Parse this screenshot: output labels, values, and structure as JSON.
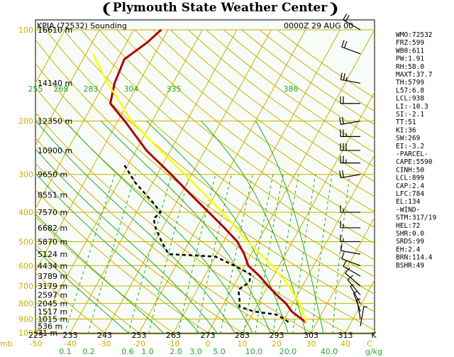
{
  "header": {
    "title": "Plymouth State Weather Center",
    "station_label": "KPIA (72532) Sounding",
    "time_label": "0000Z 29 AUG  00"
  },
  "indices": [
    "WMO:72532",
    "FRZ:599",
    "WB0:611",
    "PW:1.91",
    "RH:58.0",
    "MAXT:37.7",
    "TH:5799",
    "L57:6.8",
    "LCL:938",
    "LI:-10.3",
    "SI:-2.1",
    "TT:51",
    "KI:36",
    "SW:269",
    "EI:-3.2",
    "-PARCEL-",
    "CAPE:5590",
    "CINH:50",
    "LCL:899",
    "CAP:2.4",
    "LFC:784",
    "EL:134",
    "-WIND-",
    "STM:317/19",
    "HEL:72",
    "SHR:0.0",
    "SRDS:99",
    "EH:2.4",
    "BRN:114.4",
    "BSHR:49"
  ],
  "colors": {
    "isobar": "#c8b000",
    "isotherm": "#c8b000",
    "dry_adiabat": "#c8b000",
    "moist_adiabat": "#22aa22",
    "mixing_ratio": "#22aa22",
    "temperature": "#aa0000",
    "dewpoint": "#000000",
    "parcel": "#ffff00",
    "background": "#f8fcf8"
  },
  "chart_data": {
    "type": "line",
    "title": "",
    "xlabel": "",
    "ylabel": "mb",
    "pressure_levels": [
      100,
      200,
      300,
      400,
      500,
      600,
      700,
      800,
      900,
      1000
    ],
    "height_labels": [
      {
        "p": 100,
        "label": "16610 m"
      },
      {
        "p": 150,
        "label": "14140 m"
      },
      {
        "p": 200,
        "label": "12350 m"
      },
      {
        "p": 250,
        "label": "10900 m"
      },
      {
        "p": 300,
        "label": "9650 m"
      },
      {
        "p": 350,
        "label": "8551 m"
      },
      {
        "p": 400,
        "label": "7570 m"
      },
      {
        "p": 450,
        "label": "6682 m"
      },
      {
        "p": 500,
        "label": "5870 m"
      },
      {
        "p": 550,
        "label": "5124 m"
      },
      {
        "p": 600,
        "label": "4434 m"
      },
      {
        "p": 650,
        "label": "3789 m"
      },
      {
        "p": 700,
        "label": "3179 m"
      },
      {
        "p": 750,
        "label": "2597 m"
      },
      {
        "p": 800,
        "label": "2045 m"
      },
      {
        "p": 850,
        "label": "1517 m"
      },
      {
        "p": 900,
        "label": "1015 m"
      },
      {
        "p": 950,
        "label": "536 m"
      },
      {
        "p": 1000,
        "label": "71 m"
      }
    ],
    "temperature_ticks": [
      "-50",
      "-40",
      "-30",
      "-20",
      "-10",
      "0",
      "10",
      "20",
      "30",
      "40",
      "C"
    ],
    "kelvin_ticks": [
      "223",
      "233",
      "243",
      "253",
      "263",
      "273",
      "283",
      "293",
      "303",
      "313",
      "K"
    ],
    "mixing_ratio_ticks": [
      "0.1",
      "0.2",
      "0.6",
      "1.0",
      "2.0",
      "3.0",
      "5.0",
      "10.0",
      "20.0",
      "40.0",
      "g/kg"
    ],
    "theta_e_labels": [
      "255",
      "268",
      "283",
      "304",
      "335",
      "386"
    ],
    "series": [
      {
        "key": "temperature",
        "points": [
          [
            100,
            -62
          ],
          [
            110,
            -64
          ],
          [
            125,
            -68
          ],
          [
            150,
            -67
          ],
          [
            175,
            -65
          ],
          [
            200,
            -58
          ],
          [
            250,
            -47
          ],
          [
            300,
            -36
          ],
          [
            350,
            -27
          ],
          [
            400,
            -19
          ],
          [
            450,
            -12
          ],
          [
            500,
            -6
          ],
          [
            550,
            -2
          ],
          [
            600,
            1
          ],
          [
            650,
            6
          ],
          [
            700,
            10
          ],
          [
            750,
            14
          ],
          [
            800,
            18
          ],
          [
            850,
            21
          ],
          [
            900,
            25
          ],
          [
            925,
            27
          ]
        ]
      },
      {
        "key": "dewpoint",
        "points": [
          [
            280,
            -51
          ],
          [
            320,
            -45
          ],
          [
            370,
            -37
          ],
          [
            400,
            -33
          ],
          [
            420,
            -34
          ],
          [
            450,
            -32
          ],
          [
            500,
            -28
          ],
          [
            550,
            -24
          ],
          [
            560,
            -10
          ],
          [
            600,
            -3
          ],
          [
            640,
            3
          ],
          [
            680,
            4
          ],
          [
            720,
            2
          ],
          [
            780,
            4
          ],
          [
            820,
            5
          ],
          [
            850,
            10
          ],
          [
            870,
            17
          ],
          [
            900,
            20
          ],
          [
            925,
            22
          ]
        ]
      },
      {
        "key": "parcel",
        "points": [
          [
            925,
            27
          ],
          [
            900,
            26
          ],
          [
            850,
            24
          ],
          [
            800,
            22
          ],
          [
            700,
            16
          ],
          [
            600,
            8
          ],
          [
            500,
            -3
          ],
          [
            400,
            -15
          ],
          [
            300,
            -32
          ],
          [
            250,
            -43
          ],
          [
            200,
            -56
          ],
          [
            150,
            -69
          ],
          [
            120,
            -78
          ]
        ]
      }
    ],
    "winds": [
      {
        "p": 100,
        "dir": 300,
        "kt": 20
      },
      {
        "p": 120,
        "dir": 290,
        "kt": 20
      },
      {
        "p": 150,
        "dir": 280,
        "kt": 25
      },
      {
        "p": 175,
        "dir": 270,
        "kt": 20
      },
      {
        "p": 200,
        "dir": 260,
        "kt": 20
      },
      {
        "p": 225,
        "dir": 270,
        "kt": 25
      },
      {
        "p": 250,
        "dir": 270,
        "kt": 30
      },
      {
        "p": 275,
        "dir": 270,
        "kt": 25
      },
      {
        "p": 300,
        "dir": 260,
        "kt": 20
      },
      {
        "p": 400,
        "dir": 270,
        "kt": 15
      },
      {
        "p": 450,
        "dir": 270,
        "kt": 15
      },
      {
        "p": 500,
        "dir": 270,
        "kt": 15
      },
      {
        "p": 550,
        "dir": 280,
        "kt": 10
      },
      {
        "p": 600,
        "dir": 290,
        "kt": 10
      },
      {
        "p": 650,
        "dir": 300,
        "kt": 10
      },
      {
        "p": 700,
        "dir": 310,
        "kt": 10
      },
      {
        "p": 750,
        "dir": 320,
        "kt": 10
      },
      {
        "p": 800,
        "dir": 330,
        "kt": 5
      },
      {
        "p": 850,
        "dir": 340,
        "kt": 5
      },
      {
        "p": 900,
        "dir": 350,
        "kt": 5
      },
      {
        "p": 950,
        "dir": 10,
        "kt": 5
      }
    ]
  }
}
